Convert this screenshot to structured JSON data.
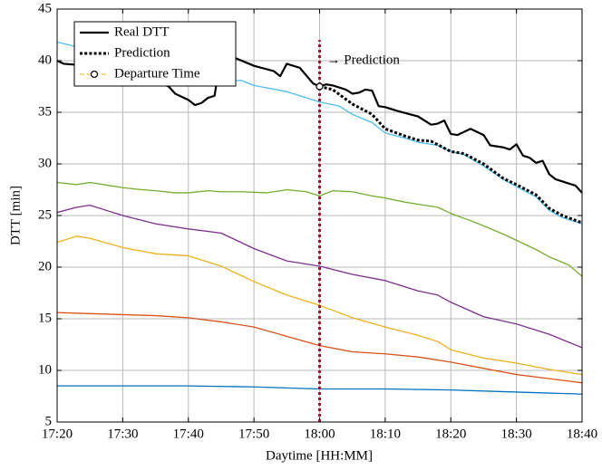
{
  "chart_data": {
    "type": "line",
    "xlabel": "Daytime [HH:MM]",
    "ylabel": "DTT [min]",
    "xlim": [
      1040,
      1120
    ],
    "ylim": [
      5,
      45
    ],
    "xticks": [
      {
        "value": 1040,
        "label": "17:20"
      },
      {
        "value": 1050,
        "label": "17:30"
      },
      {
        "value": 1060,
        "label": "17:40"
      },
      {
        "value": 1070,
        "label": "17:50"
      },
      {
        "value": 1080,
        "label": "18:00"
      },
      {
        "value": 1090,
        "label": "18:10"
      },
      {
        "value": 1100,
        "label": "18:20"
      },
      {
        "value": 1110,
        "label": "18:30"
      },
      {
        "value": 1120,
        "label": "18:40"
      }
    ],
    "yticks": [
      5,
      10,
      15,
      20,
      25,
      30,
      35,
      40,
      45
    ],
    "grid": true,
    "legend": "upper left",
    "annotation": "→ Prediction",
    "departure_line": {
      "x": 1080,
      "y": [
        5,
        42
      ],
      "color": "#a2142f"
    },
    "series": [
      {
        "name": "Real DTT",
        "color": "#000000",
        "dash": "solid",
        "width": 2.2,
        "x": [
          1040,
          1041,
          1045,
          1050,
          1055,
          1057,
          1058,
          1060,
          1061,
          1062,
          1063,
          1064,
          1065,
          1067,
          1070,
          1073,
          1074,
          1075,
          1077,
          1079,
          1080,
          1081,
          1082,
          1084,
          1085,
          1086,
          1087,
          1088,
          1089,
          1090,
          1092,
          1095,
          1097,
          1098,
          1099,
          1100,
          1101,
          1103,
          1105,
          1106,
          1108,
          1109,
          1110,
          1111,
          1112,
          1113,
          1114,
          1115,
          1116,
          1118,
          1119,
          1120
        ],
        "values": [
          40,
          39.7,
          39.5,
          39,
          38,
          37.5,
          36.8,
          36.2,
          35.7,
          35.9,
          36.4,
          36.6,
          40.8,
          40.3,
          39.5,
          39,
          38.5,
          39.7,
          39.3,
          37.8,
          37.5,
          37.7,
          37.6,
          37.2,
          36.8,
          36.9,
          37.2,
          37.1,
          35.6,
          35.5,
          35.1,
          34.6,
          33.8,
          33.9,
          34.2,
          32.9,
          32.8,
          33.4,
          32.8,
          31.8,
          31.6,
          31.4,
          31.9,
          30.8,
          30.6,
          30.1,
          30.3,
          29,
          28.5,
          28.1,
          27.9,
          27.2
        ]
      },
      {
        "name": "Prediction",
        "color": "#000000",
        "dash": "dotted",
        "width": 3,
        "x": [
          1080,
          1082,
          1085,
          1088,
          1090,
          1093,
          1095,
          1097,
          1100,
          1102,
          1105,
          1108,
          1110,
          1113,
          1115,
          1117,
          1120
        ],
        "values": [
          37.5,
          37.2,
          35.8,
          34.8,
          33.4,
          32.7,
          32.3,
          32.2,
          31.2,
          31,
          30,
          28.6,
          28,
          27,
          25.7,
          25,
          24.3
        ]
      },
      {
        "name": "Departure Time",
        "color": "#edb120",
        "dash": "dashed",
        "width": 1,
        "marker": "circle",
        "x": [
          1080
        ],
        "values": [
          37.5
        ]
      },
      {
        "color": "#4dbeee",
        "dash": "solid",
        "width": 1.3,
        "x": [
          1040,
          1042,
          1045,
          1050,
          1055,
          1060,
          1065,
          1068,
          1070,
          1075,
          1080,
          1083,
          1085,
          1088,
          1090,
          1093,
          1095,
          1098,
          1100,
          1102,
          1105,
          1108,
          1110,
          1113,
          1115,
          1117,
          1120
        ],
        "values": [
          41.8,
          41.5,
          41,
          40,
          39.2,
          38.5,
          37.9,
          38.1,
          37.6,
          37,
          36,
          35.6,
          34.8,
          34,
          33,
          32.5,
          32.1,
          31.8,
          31.2,
          30.9,
          29.8,
          28.5,
          27.8,
          26.8,
          25.5,
          24.8,
          24.2
        ]
      },
      {
        "color": "#77ac30",
        "dash": "solid",
        "width": 1.3,
        "x": [
          1040,
          1043,
          1045,
          1048,
          1050,
          1053,
          1055,
          1058,
          1060,
          1063,
          1065,
          1068,
          1072,
          1075,
          1078,
          1080,
          1082,
          1085,
          1088,
          1090,
          1093,
          1095,
          1098,
          1100,
          1103,
          1105,
          1108,
          1110,
          1113,
          1115,
          1118,
          1120
        ],
        "values": [
          28.2,
          28,
          28.2,
          27.9,
          27.7,
          27.5,
          27.4,
          27.2,
          27.2,
          27.4,
          27.3,
          27.3,
          27.2,
          27.5,
          27.3,
          26.9,
          27.4,
          27.3,
          26.9,
          26.7,
          26.3,
          26.1,
          25.8,
          25.2,
          24.5,
          24,
          23.2,
          22.6,
          21.7,
          21,
          20.2,
          19.1
        ]
      },
      {
        "color": "#7e2f8e",
        "dash": "solid",
        "width": 1.3,
        "x": [
          1040,
          1043,
          1045,
          1048,
          1050,
          1055,
          1060,
          1065,
          1068,
          1070,
          1075,
          1080,
          1085,
          1090,
          1095,
          1098,
          1100,
          1105,
          1110,
          1115,
          1120
        ],
        "values": [
          25.3,
          25.8,
          26,
          25.4,
          25,
          24.2,
          23.7,
          23.3,
          22.4,
          21.8,
          20.6,
          20.1,
          19.3,
          18.7,
          17.7,
          17.3,
          16.6,
          15.2,
          14.5,
          13.5,
          12.2
        ]
      },
      {
        "color": "#edb120",
        "dash": "solid",
        "width": 1.3,
        "x": [
          1040,
          1043,
          1045,
          1050,
          1055,
          1060,
          1065,
          1070,
          1075,
          1080,
          1085,
          1090,
          1095,
          1098,
          1100,
          1105,
          1110,
          1115,
          1120
        ],
        "values": [
          22.4,
          23,
          22.8,
          21.9,
          21.3,
          21.1,
          20.1,
          18.6,
          17.3,
          16.3,
          15.1,
          14.2,
          13.4,
          12.8,
          12,
          11.2,
          10.7,
          10.1,
          9.6
        ]
      },
      {
        "color": "#d95319",
        "dash": "solid",
        "width": 1.3,
        "x": [
          1040,
          1045,
          1050,
          1055,
          1060,
          1065,
          1070,
          1075,
          1080,
          1085,
          1090,
          1095,
          1100,
          1105,
          1110,
          1115,
          1120
        ],
        "values": [
          15.6,
          15.5,
          15.4,
          15.3,
          15.1,
          14.7,
          14.2,
          13.3,
          12.4,
          11.8,
          11.6,
          11.3,
          10.8,
          10.2,
          9.6,
          9.2,
          8.8
        ]
      },
      {
        "color": "#0072bd",
        "dash": "solid",
        "width": 1.3,
        "x": [
          1040,
          1050,
          1060,
          1070,
          1080,
          1090,
          1100,
          1110,
          1120
        ],
        "values": [
          8.5,
          8.5,
          8.5,
          8.4,
          8.2,
          8.2,
          8.1,
          7.9,
          7.7
        ]
      }
    ]
  }
}
